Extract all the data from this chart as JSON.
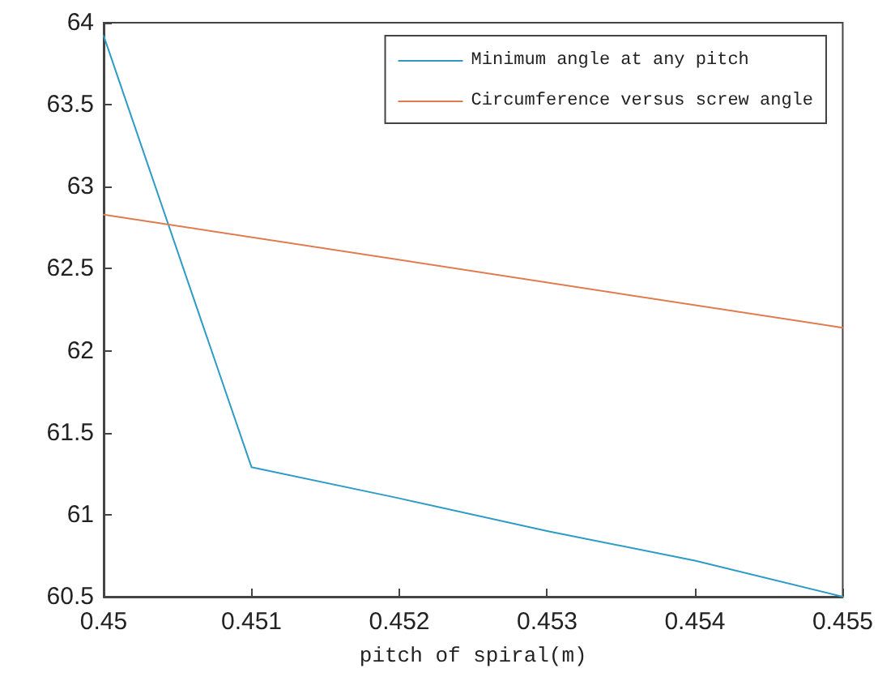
{
  "chart_data": {
    "type": "line",
    "xlabel": "pitch of spiral(m)",
    "x": [
      0.45,
      0.451,
      0.452,
      0.453,
      0.454,
      0.455
    ],
    "series": [
      {
        "name": "Minimum angle at any pitch",
        "color": "#2e9bc6",
        "values": [
          63.92,
          61.29,
          61.1,
          60.9,
          60.72,
          60.5
        ]
      },
      {
        "name": "Circumference versus screw angle",
        "color": "#e07b4f",
        "x": [
          0.45,
          0.455
        ],
        "values": [
          62.83,
          62.14
        ]
      }
    ],
    "xlim": [
      0.45,
      0.455
    ],
    "xticks": [
      0.45,
      0.451,
      0.452,
      0.453,
      0.454,
      0.455
    ],
    "ylim": [
      60.5,
      64
    ],
    "yticks": [
      60.5,
      61,
      61.5,
      62,
      62.5,
      63,
      63.5,
      64
    ],
    "grid": false,
    "legend": "top right",
    "marker": "none",
    "line_style": "solid"
  }
}
